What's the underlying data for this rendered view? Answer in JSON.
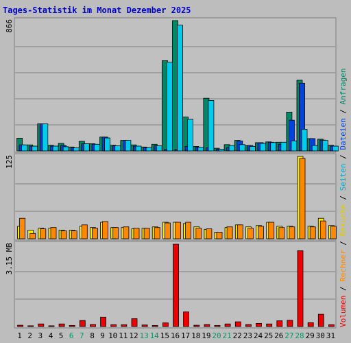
{
  "title": "Tages-Statistik im Monat Dezember 2025",
  "colors": {
    "page_bg": "#bdbdbd",
    "plot_bg": "#c0c0c0",
    "grid": "#808080",
    "title": "#0000cc",
    "axis_text": "#000000",
    "weekend_text": "#009966",
    "anfragen": "#008866",
    "dateien": "#0044dd",
    "seiten": "#00ccee",
    "besuche": "#ffee00",
    "rechner": "#ff8800",
    "volumen": "#ee0000",
    "separator": "#000000"
  },
  "labels": {
    "top_max": "866",
    "mid_max": "125",
    "bottom_max": "3.15 MB"
  },
  "legend": {
    "top": [
      {
        "text": "Anfragen",
        "color": "#008866"
      },
      {
        "text": " / ",
        "color": "#000000"
      },
      {
        "text": "Dateien",
        "color": "#0044dd"
      },
      {
        "text": " / ",
        "color": "#000000"
      },
      {
        "text": "Seiten",
        "color": "#00aacc"
      },
      {
        "text": " / ",
        "color": "#000000"
      },
      {
        "text": "Besuche",
        "color": "#ddcc00"
      },
      {
        "text": " / ",
        "color": "#000000"
      },
      {
        "text": "Rechner",
        "color": "#ff8800"
      },
      {
        "text": " / ",
        "color": "#000000"
      },
      {
        "text": "Volumen",
        "color": "#ee0000"
      }
    ]
  },
  "chart_data": {
    "type": "bar",
    "title": "Tages-Statistik im Monat Dezember 2025",
    "categories": [
      "1",
      "2",
      "3",
      "4",
      "5",
      "6",
      "7",
      "8",
      "9",
      "10",
      "11",
      "12",
      "13",
      "14",
      "15",
      "16",
      "17",
      "18",
      "19",
      "20",
      "21",
      "22",
      "23",
      "24",
      "25",
      "26",
      "27",
      "28",
      "29",
      "30",
      "31"
    ],
    "weekend_days": [
      "6",
      "7",
      "13",
      "14",
      "20",
      "21",
      "27",
      "28"
    ],
    "panels": [
      {
        "name": "hits",
        "ymax": 866,
        "ymax_label": "866",
        "series": [
          {
            "name": "Anfragen",
            "values": [
              85,
              40,
              180,
              38,
              50,
              26,
              64,
              48,
              92,
              38,
              70,
              40,
              26,
              44,
              600,
              866,
              225,
              30,
              350,
              18,
              42,
              70,
              36,
              55,
              60,
              58,
              258,
              470,
              82,
              78,
              38
            ]
          },
          {
            "name": "Dateien",
            "values": [
              40,
              32,
              180,
              32,
              36,
              20,
              48,
              44,
              92,
              34,
              70,
              32,
              22,
              34,
              10,
              10,
              30,
              24,
              20,
              12,
              22,
              66,
              36,
              55,
              58,
              44,
              204,
              450,
              82,
              72,
              32
            ]
          },
          {
            "name": "Seiten",
            "values": [
              40,
              32,
              180,
              32,
              28,
              20,
              48,
              44,
              86,
              34,
              70,
              32,
              22,
              34,
              590,
              836,
              210,
              24,
              335,
              12,
              36,
              42,
              30,
              50,
              56,
              58,
              66,
              144,
              36,
              70,
              32
            ]
          }
        ]
      },
      {
        "name": "visits",
        "ymax": 125,
        "ymax_label": "125",
        "series": [
          {
            "name": "Besuche",
            "values": [
              19,
              13,
              16,
              16,
              13,
              13,
              19,
              17,
              25,
              17,
              17,
              15,
              16,
              18,
              25,
              25,
              23,
              18,
              14,
              10,
              17,
              21,
              18,
              20,
              25,
              19,
              19,
              125,
              19,
              31,
              20
            ]
          },
          {
            "name": "Rechner",
            "values": [
              31,
              8,
              15,
              17,
              12,
              12,
              21,
              16,
              26,
              17,
              18,
              16,
              16,
              17,
              24,
              25,
              25,
              16,
              15,
              10,
              18,
              21,
              16,
              19,
              25,
              17,
              18,
              122,
              18,
              27,
              19
            ]
          }
        ]
      },
      {
        "name": "volume",
        "ymax": 3.15,
        "ymax_label": "3.15 MB",
        "series": [
          {
            "name": "Volumen",
            "values": [
              0.05,
              0.03,
              0.1,
              0.03,
              0.1,
              0.04,
              0.23,
              0.08,
              0.36,
              0.07,
              0.07,
              0.3,
              0.06,
              0.04,
              0.14,
              3.15,
              0.56,
              0.05,
              0.08,
              0.04,
              0.1,
              0.18,
              0.08,
              0.12,
              0.1,
              0.22,
              0.24,
              2.9,
              0.15,
              0.47,
              0.07
            ]
          }
        ]
      }
    ]
  }
}
